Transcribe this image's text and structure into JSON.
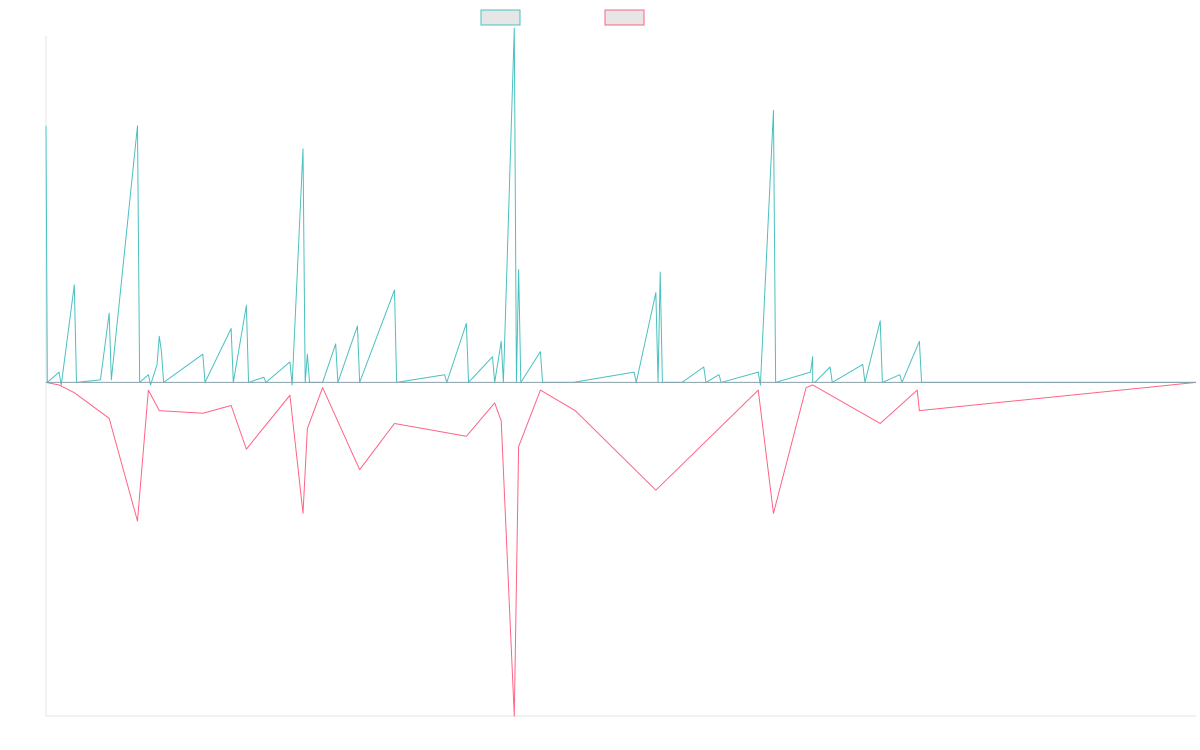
{
  "chart_data": {
    "type": "line",
    "title": "",
    "xlabel": "",
    "ylabel": "",
    "grid": false,
    "legend": "top-center",
    "ylim": [
      -1.3,
      1.35
    ],
    "series": [
      {
        "name": "",
        "color": "#4bc0c0",
        "points": [
          [
            0,
            1.0
          ],
          [
            0.3,
            0.0
          ],
          [
            3,
            0.04
          ],
          [
            3.5,
            -0.01
          ],
          [
            6.5,
            0.38
          ],
          [
            7,
            0.0
          ],
          [
            12.5,
            0.01
          ],
          [
            14.5,
            0.27
          ],
          [
            15,
            0.01
          ],
          [
            21,
            1.0
          ],
          [
            21.5,
            0.0
          ],
          [
            23.5,
            0.03
          ],
          [
            24,
            -0.01
          ],
          [
            25.5,
            0.07
          ],
          [
            26,
            0.18
          ],
          [
            26.5,
            0.12
          ],
          [
            27,
            0.0
          ],
          [
            36,
            0.11
          ],
          [
            36.5,
            0.0
          ],
          [
            42.5,
            0.21
          ],
          [
            43,
            0.0
          ],
          [
            46,
            0.3
          ],
          [
            46.5,
            0.0
          ],
          [
            50,
            0.02
          ],
          [
            50.5,
            0.0
          ],
          [
            56,
            0.08
          ],
          [
            56.5,
            -0.01
          ],
          [
            59,
            0.91
          ],
          [
            59.5,
            0.0
          ],
          [
            60,
            0.11
          ],
          [
            60.5,
            0.0
          ],
          [
            63.5,
            0.0
          ],
          [
            66.5,
            0.15
          ],
          [
            67,
            0.0
          ],
          [
            71.5,
            0.22
          ],
          [
            72,
            0.0
          ],
          [
            80,
            0.36
          ],
          [
            80.5,
            0.0
          ],
          [
            91.5,
            0.03
          ],
          [
            92,
            0.0
          ],
          [
            96.5,
            0.23
          ],
          [
            97,
            0.0
          ],
          [
            102.5,
            0.1
          ],
          [
            103,
            0.0
          ],
          [
            104.5,
            0.16
          ],
          [
            105,
            0.0
          ],
          [
            107.5,
            1.38
          ],
          [
            108,
            0.0
          ],
          [
            108.5,
            0.44
          ],
          [
            109,
            0.0
          ],
          [
            113.5,
            0.12
          ],
          [
            114,
            0.0
          ],
          [
            121,
            0.0
          ],
          [
            135,
            0.04
          ],
          [
            135.5,
            0.0
          ],
          [
            140,
            0.35
          ],
          [
            140.5,
            0.0
          ],
          [
            141,
            0.43
          ],
          [
            141.5,
            0.0
          ],
          [
            146,
            0.0
          ],
          [
            151,
            0.06
          ],
          [
            151.5,
            0.0
          ],
          [
            154.5,
            0.03
          ],
          [
            155,
            0.0
          ],
          [
            167,
            1.06
          ],
          [
            167.5,
            0.0
          ],
          [
            163.5,
            0.04
          ],
          [
            164,
            -0.01
          ],
          [
            176,
            0.1
          ],
          [
            176.5,
            0.0
          ],
          [
            175.5,
            0.04
          ],
          [
            180,
            0.06
          ],
          [
            180.5,
            0.0
          ],
          [
            176,
            0.0
          ],
          [
            187.5,
            0.07
          ],
          [
            188,
            0.0
          ],
          [
            191.5,
            0.24
          ],
          [
            192,
            0.0
          ],
          [
            196,
            0.03
          ],
          [
            196.5,
            0.0
          ],
          [
            200.5,
            0.16
          ],
          [
            201,
            0.0
          ],
          [
            264,
            0.0
          ]
        ]
      },
      {
        "name": "",
        "color": "#ff6384",
        "points": [
          [
            0,
            0.0
          ],
          [
            3,
            -0.01
          ],
          [
            6.5,
            -0.04
          ],
          [
            14.5,
            -0.14
          ],
          [
            21,
            -0.54
          ],
          [
            23.5,
            -0.03
          ],
          [
            26,
            -0.11
          ],
          [
            36,
            -0.12
          ],
          [
            42.5,
            -0.09
          ],
          [
            46,
            -0.26
          ],
          [
            56,
            -0.05
          ],
          [
            59,
            -0.51
          ],
          [
            60,
            -0.18
          ],
          [
            63.5,
            -0.02
          ],
          [
            72,
            -0.34
          ],
          [
            80,
            -0.16
          ],
          [
            96.5,
            -0.21
          ],
          [
            103,
            -0.08
          ],
          [
            104.5,
            -0.15
          ],
          [
            107.5,
            -1.3
          ],
          [
            108.5,
            -0.25
          ],
          [
            113.5,
            -0.03
          ],
          [
            121.5,
            -0.11
          ],
          [
            140,
            -0.42
          ],
          [
            163.5,
            -0.03
          ],
          [
            167,
            -0.51
          ],
          [
            174.5,
            -0.02
          ],
          [
            176,
            -0.01
          ],
          [
            191.5,
            -0.16
          ],
          [
            200,
            -0.03
          ],
          [
            200.5,
            -0.11
          ],
          [
            264,
            0.0
          ]
        ]
      }
    ]
  }
}
